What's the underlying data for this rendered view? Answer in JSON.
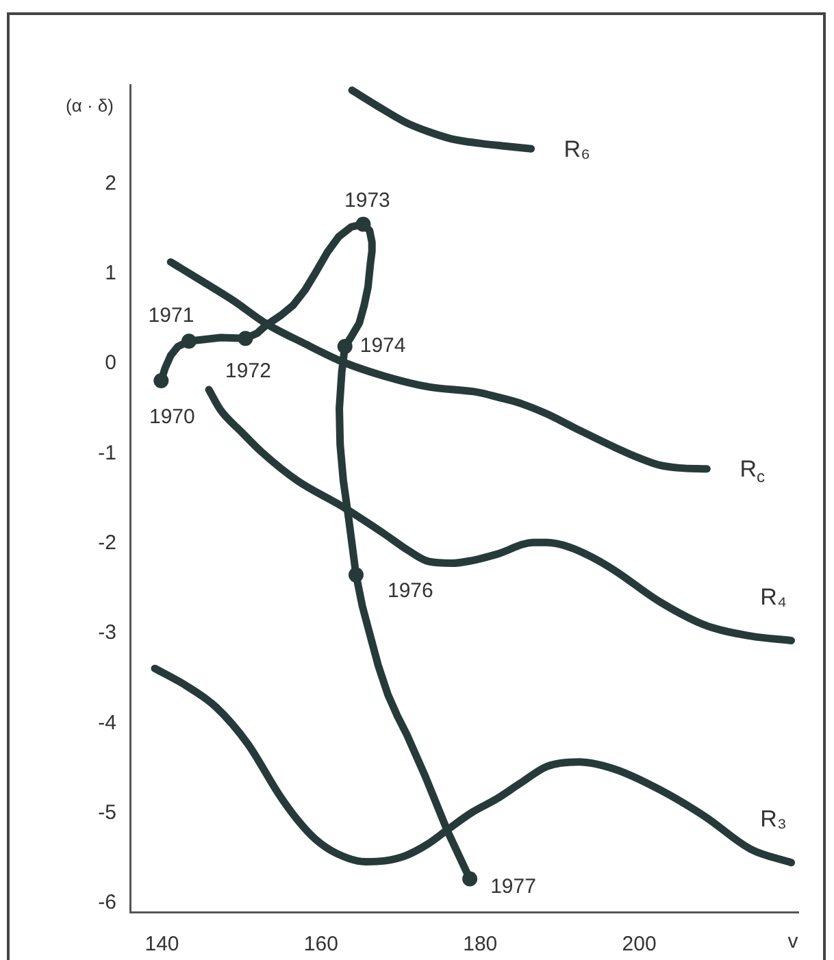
{
  "chart_data": {
    "type": "line",
    "ylabel": "(α · δ)",
    "xlabel": "v",
    "xlim": [
      136,
      220
    ],
    "xticks": [
      140,
      160,
      180,
      200
    ],
    "ylim": [
      -6.1,
      3.1
    ],
    "yticks": [
      -6,
      -5,
      -4,
      -3,
      -2,
      -1,
      0,
      1,
      2
    ],
    "marker": "none",
    "series": [
      {
        "name": "R₆",
        "color": "#263a3a",
        "x": [
          163.9,
          167,
          170.7,
          173.5,
          176.4,
          180,
          183,
          186.4
        ],
        "values": [
          3.04,
          2.87,
          2.68,
          2.58,
          2.5,
          2.45,
          2.42,
          2.39
        ]
      },
      {
        "name": "R$_{c}$",
        "color": "#263a3a",
        "x": [
          141.1,
          145,
          149,
          153,
          158,
          162.7,
          168,
          173.6,
          179.8,
          182.1,
          185,
          188.4,
          192,
          196.9,
          200,
          202.6,
          205,
          208.5
        ],
        "values": [
          1.13,
          0.92,
          0.7,
          0.45,
          0.22,
          0.02,
          -0.14,
          -0.26,
          -0.32,
          -0.37,
          -0.44,
          -0.56,
          -0.72,
          -0.93,
          -1.05,
          -1.13,
          -1.16,
          -1.17
        ]
      },
      {
        "name": "R₄",
        "color": "#263a3a",
        "x": [
          145.9,
          147.4,
          150,
          152.5,
          157,
          162.7,
          167.9,
          171,
          173.5,
          176.4,
          179,
          182.1,
          186.7,
          188.4,
          191.2,
          194,
          196.9,
          202.6,
          208.3,
          214,
          219.1
        ],
        "values": [
          -0.29,
          -0.52,
          -0.76,
          -0.98,
          -1.3,
          -1.59,
          -1.89,
          -2.08,
          -2.2,
          -2.22,
          -2.19,
          -2.12,
          -1.99,
          -1.99,
          -2.04,
          -2.15,
          -2.3,
          -2.65,
          -2.91,
          -3.03,
          -3.08
        ]
      },
      {
        "name": "R₃",
        "color": "#263a3a",
        "x": [
          139.1,
          143,
          146.8,
          150.8,
          154.7,
          157,
          159.3,
          162,
          165.6,
          168,
          170.7,
          173.3,
          175.8,
          179,
          182.1,
          185,
          188.4,
          192.4,
          196.9,
          202.6,
          208.3,
          214,
          219.1
        ],
        "values": [
          -3.39,
          -3.58,
          -3.82,
          -4.23,
          -4.79,
          -5.07,
          -5.29,
          -5.45,
          -5.54,
          -5.53,
          -5.47,
          -5.35,
          -5.19,
          -4.99,
          -4.84,
          -4.67,
          -4.48,
          -4.43,
          -4.51,
          -4.74,
          -5.04,
          -5.4,
          -5.55
        ]
      },
      {
        "color": "#263a3a",
        "x": [
          139.9,
          140.4,
          141.1,
          142,
          143.4,
          145.5,
          147.4,
          150.5,
          152,
          153,
          155,
          156.5,
          158,
          159.3,
          160.8,
          162.2,
          163.8,
          165.3,
          166.1,
          166.4,
          166.4,
          166.2,
          165.9,
          165.4,
          164.8,
          163.8,
          163,
          162.6,
          162.3,
          162.4,
          162.8,
          163.5,
          164.4,
          165.2,
          166.1,
          167.2,
          168.4,
          169.6,
          170.8,
          173.1,
          175.9,
          178.7
        ],
        "values": [
          -0.19,
          -0.05,
          0.09,
          0.19,
          0.25,
          0.27,
          0.29,
          0.28,
          0.34,
          0.42,
          0.54,
          0.65,
          0.82,
          1.01,
          1.24,
          1.41,
          1.52,
          1.55,
          1.48,
          1.35,
          1.25,
          1.11,
          0.85,
          0.64,
          0.45,
          0.3,
          0.19,
          -0.1,
          -0.5,
          -0.9,
          -1.3,
          -1.74,
          -2.35,
          -2.7,
          -3.0,
          -3.36,
          -3.68,
          -3.92,
          -4.13,
          -4.59,
          -5.2,
          -5.73
        ]
      },
      {
        "type": "scatter",
        "marker": "circle",
        "color": "#263a3a",
        "x": [
          139.9,
          143.4,
          150.5,
          165.3,
          163,
          164.4,
          178.7
        ],
        "values": [
          -0.19,
          0.25,
          0.28,
          1.55,
          0.19,
          -2.35,
          -5.73
        ]
      }
    ],
    "annotations": [
      {
        "text": "1970",
        "x": 139.9,
        "y": -0.19
      },
      {
        "text": "1971",
        "x": 143.4,
        "y": 0.25
      },
      {
        "text": "1972",
        "x": 150.5,
        "y": 0.28
      },
      {
        "text": "1973",
        "x": 165.3,
        "y": 1.55
      },
      {
        "text": "1974",
        "x": 163,
        "y": 0.19
      },
      {
        "text": "1976",
        "x": 164.4,
        "y": -2.35
      },
      {
        "text": "1977",
        "x": 178.7,
        "y": -5.73
      }
    ]
  }
}
